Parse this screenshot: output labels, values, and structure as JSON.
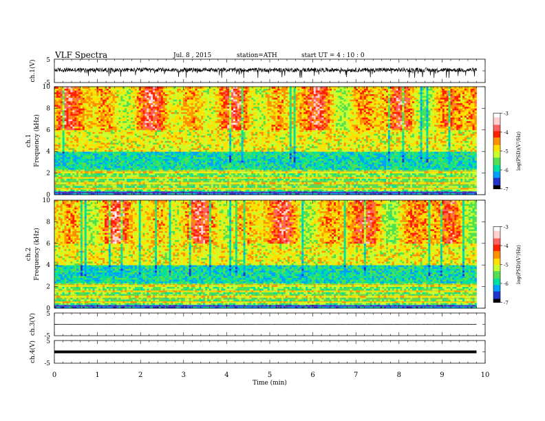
{
  "header": {
    "title": "VLF  Spectra",
    "date": "Jul.  8  , 2015",
    "station": "station=ATH",
    "start": "start  UT  =   4  : 10 : 0"
  },
  "chart_data": [
    {
      "type": "line",
      "id": "ch1",
      "ylabel": "ch.1(V)",
      "ylim": [
        -5,
        5
      ],
      "ytick_labels": [
        "5",
        "-5"
      ],
      "mean_level": 0.4,
      "noise_amplitude": 0.9,
      "spike_depth_min": -2.5
    },
    {
      "type": "heatmap",
      "id": "ch1_spec",
      "ylabel_channel": "ch.1",
      "ylabel": "Frequency  (kHz)",
      "ylim": [
        0,
        10
      ],
      "ytick_labels": [
        "0",
        "2",
        "4",
        "6",
        "8",
        "10"
      ],
      "xlim": [
        0,
        10
      ],
      "data_end_min": 9.8,
      "colorbar": {
        "label": "log(PSD)(V²/Hz)",
        "range": [
          -7,
          -3
        ],
        "tick_labels": [
          "-3",
          "-4",
          "-5",
          "-6",
          "-7"
        ],
        "colors": [
          "#000000",
          "#2233cc",
          "#00a0ff",
          "#00e0a0",
          "#50e050",
          "#c8ff30",
          "#ffe000",
          "#ff9000",
          "#ff2000",
          "#ff6060",
          "#ffd0d0",
          "#ffffff"
        ]
      }
    },
    {
      "type": "heatmap",
      "id": "ch2_spec",
      "ylabel_channel": "ch.2",
      "ylabel": "Frequency  (kHz)",
      "ylim": [
        0,
        10
      ],
      "ytick_labels": [
        "0",
        "2",
        "4",
        "6",
        "8",
        "10"
      ],
      "xlim": [
        0,
        10
      ],
      "data_end_min": 9.8,
      "colorbar": {
        "label": "log(PSD)(V²/Hz)",
        "range": [
          -7,
          -3
        ],
        "tick_labels": [
          "-3",
          "-4",
          "-5",
          "-6",
          "-7"
        ]
      }
    },
    {
      "type": "line",
      "id": "ch3",
      "ylabel": "ch.3(V)",
      "ylim": [
        -5,
        5
      ],
      "ytick_labels": [
        "5",
        "-5"
      ],
      "mean_level": 0.0,
      "noise_amplitude": 0.05
    },
    {
      "type": "line",
      "id": "ch4",
      "ylabel": "ch.4(V)",
      "ylim": [
        -5,
        5
      ],
      "ytick_labels": [
        "5",
        "-5"
      ],
      "mean_level": 0.0,
      "noise_amplitude": 0.0
    }
  ],
  "xaxis": {
    "label": "Time  (min)",
    "range": [
      0,
      10
    ],
    "tick_labels": [
      "0",
      "1",
      "2",
      "3",
      "4",
      "5",
      "6",
      "7",
      "8",
      "9",
      "10"
    ]
  }
}
